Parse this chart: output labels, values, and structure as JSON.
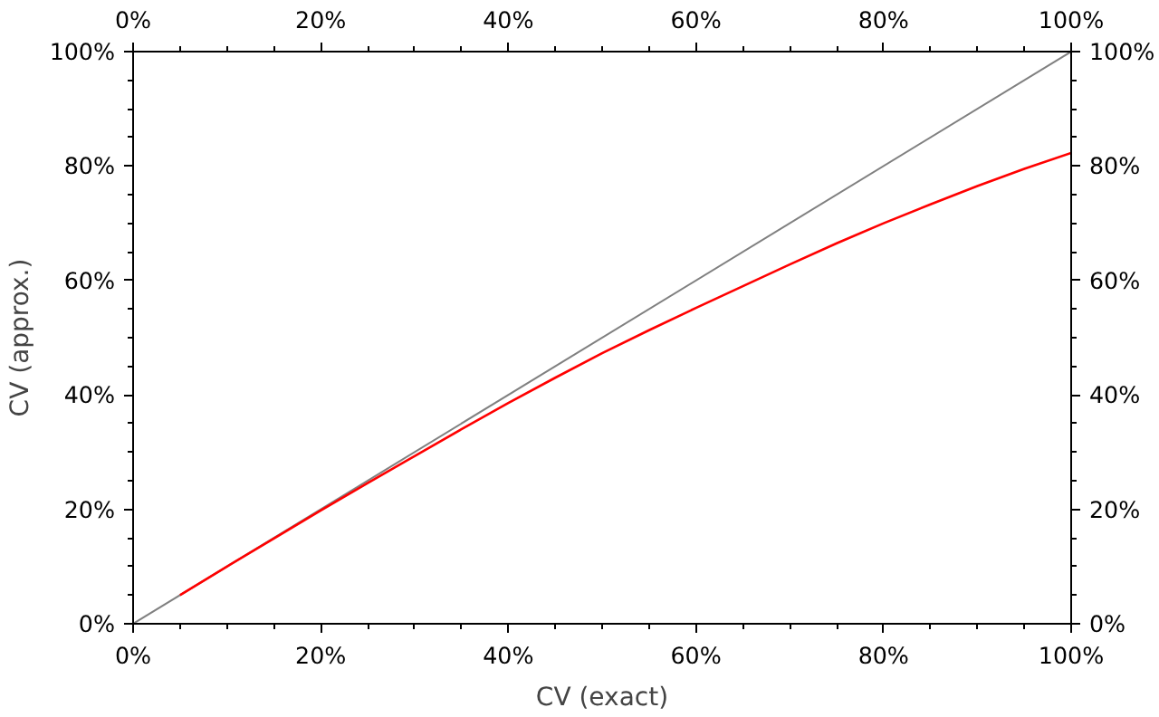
{
  "chart_data": {
    "type": "line",
    "xlabel": "CV (exact)",
    "ylabel": "CV (approx.)",
    "xlim": [
      0,
      100
    ],
    "ylim": [
      0,
      100
    ],
    "x2lim": [
      0,
      100
    ],
    "y2lim": [
      0,
      100
    ],
    "xticks": [
      {
        "value": 0,
        "label": "0%"
      },
      {
        "value": 20,
        "label": "20%"
      },
      {
        "value": 40,
        "label": "40%"
      },
      {
        "value": 60,
        "label": "60%"
      },
      {
        "value": 80,
        "label": "80%"
      },
      {
        "value": 100,
        "label": "100%"
      }
    ],
    "x2ticks": [
      {
        "value": 0,
        "label": "0%"
      },
      {
        "value": 20,
        "label": "20%"
      },
      {
        "value": 40,
        "label": "40%"
      },
      {
        "value": 60,
        "label": "60%"
      },
      {
        "value": 80,
        "label": "80%"
      },
      {
        "value": 100,
        "label": "100%"
      }
    ],
    "yticks": [
      {
        "value": 0,
        "label": "0%"
      },
      {
        "value": 20,
        "label": "20%"
      },
      {
        "value": 40,
        "label": "40%"
      },
      {
        "value": 60,
        "label": "60%"
      },
      {
        "value": 80,
        "label": "80%"
      },
      {
        "value": 100,
        "label": "100%"
      }
    ],
    "y2ticks": [
      {
        "value": 0,
        "label": "0%"
      },
      {
        "value": 20,
        "label": "20%"
      },
      {
        "value": 40,
        "label": "40%"
      },
      {
        "value": 60,
        "label": "60%"
      },
      {
        "value": 80,
        "label": "80%"
      },
      {
        "value": 100,
        "label": "100%"
      }
    ],
    "grid": false,
    "line_style": "solid",
    "series": [
      {
        "color": "#808080",
        "x": [
          0,
          100
        ],
        "values": [
          0,
          100
        ]
      },
      {
        "color": "#ff0000",
        "x": [
          5,
          10,
          15,
          20,
          25,
          30,
          35,
          40,
          45,
          50,
          55,
          60,
          65,
          70,
          75,
          80,
          85,
          90,
          95,
          100
        ],
        "values": [
          5,
          10,
          14.9,
          19.8,
          24.6,
          29.3,
          34,
          38.6,
          43,
          47.3,
          51.3,
          55.2,
          59,
          62.8,
          66.5,
          70,
          73.3,
          76.5,
          79.5,
          82.3
        ]
      }
    ]
  }
}
